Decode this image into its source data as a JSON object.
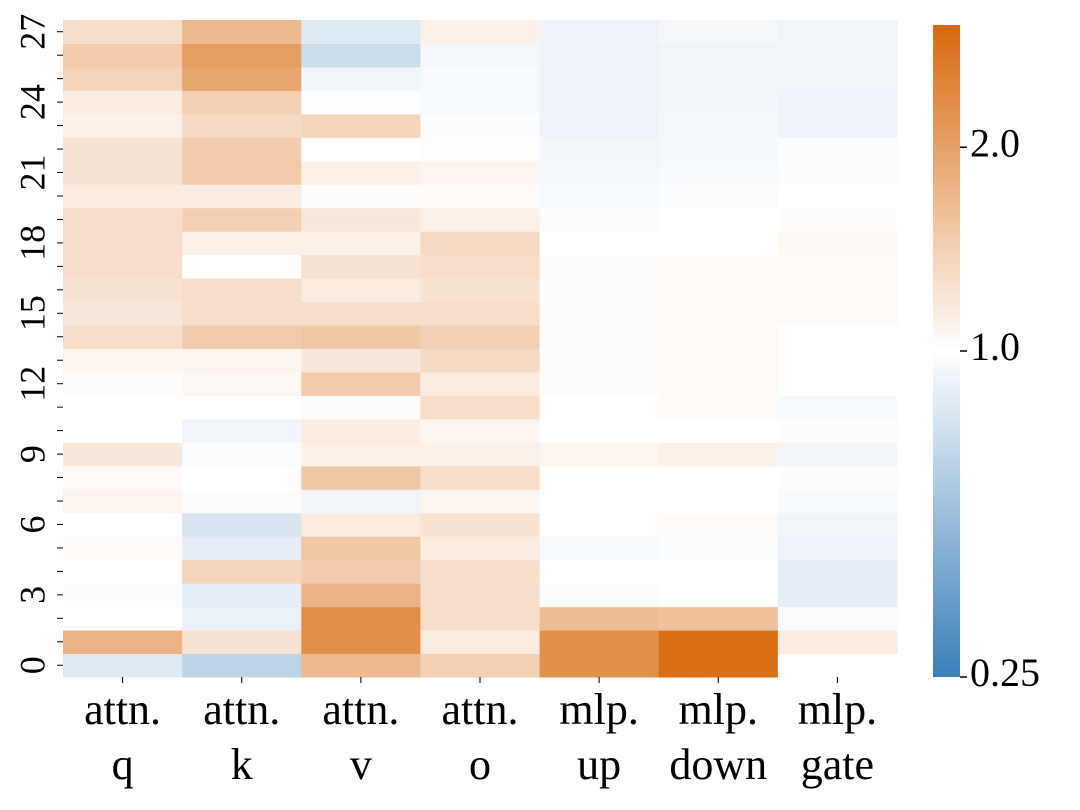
{
  "chart_data": {
    "type": "heatmap",
    "categories": [
      [
        "attn.",
        "q"
      ],
      [
        "attn.",
        "k"
      ],
      [
        "attn.",
        "v"
      ],
      [
        "attn.",
        "o"
      ],
      [
        "mlp.",
        "up"
      ],
      [
        "mlp.",
        "down"
      ],
      [
        "mlp.",
        "gate"
      ]
    ],
    "y_categories": [
      0,
      null,
      null,
      3,
      null,
      null,
      6,
      null,
      null,
      9,
      null,
      null,
      12,
      null,
      null,
      15,
      null,
      null,
      18,
      null,
      null,
      21,
      null,
      null,
      24,
      null,
      null,
      27
    ],
    "values": [
      [
        0.88,
        0.75,
        1.75,
        1.5,
        2.2,
        2.55,
        1.0
      ],
      [
        1.8,
        1.3,
        2.2,
        1.2,
        2.2,
        2.55,
        1.2
      ],
      [
        1.0,
        0.92,
        2.2,
        1.35,
        1.7,
        1.65,
        0.98
      ],
      [
        0.98,
        0.9,
        1.8,
        1.35,
        0.98,
        1.0,
        0.9
      ],
      [
        1.0,
        1.45,
        1.55,
        1.35,
        1.0,
        1.0,
        0.9
      ],
      [
        1.05,
        0.9,
        1.6,
        1.2,
        0.97,
        0.98,
        0.93
      ],
      [
        1.0,
        0.85,
        1.2,
        1.3,
        1.0,
        1.05,
        0.95
      ],
      [
        1.1,
        1.03,
        0.95,
        1.1,
        1.0,
        1.0,
        0.97
      ],
      [
        1.05,
        1.0,
        1.6,
        1.35,
        1.0,
        1.0,
        0.98
      ],
      [
        1.25,
        0.98,
        1.15,
        1.15,
        1.1,
        1.15,
        0.95
      ],
      [
        1.0,
        0.95,
        1.2,
        1.1,
        1.0,
        1.0,
        0.98
      ],
      [
        1.0,
        1.0,
        1.03,
        1.35,
        1.0,
        1.05,
        0.97
      ],
      [
        1.03,
        1.08,
        1.55,
        1.2,
        1.03,
        1.05,
        1.0
      ],
      [
        1.1,
        1.1,
        1.25,
        1.4,
        1.03,
        1.05,
        1.0
      ],
      [
        1.35,
        1.55,
        1.6,
        1.5,
        1.03,
        1.05,
        1.0
      ],
      [
        1.25,
        1.35,
        1.35,
        1.35,
        1.03,
        1.05,
        1.05
      ],
      [
        1.3,
        1.35,
        1.2,
        1.3,
        1.03,
        1.05,
        1.05
      ],
      [
        1.35,
        1.0,
        1.3,
        1.35,
        1.03,
        1.05,
        1.05
      ],
      [
        1.35,
        1.15,
        1.15,
        1.4,
        1.0,
        1.0,
        1.08
      ],
      [
        1.35,
        1.5,
        1.25,
        1.15,
        0.98,
        1.0,
        1.03
      ],
      [
        1.2,
        1.2,
        0.98,
        1.05,
        0.97,
        0.98,
        1.0
      ],
      [
        1.3,
        1.55,
        1.15,
        1.1,
        0.96,
        0.97,
        0.98
      ],
      [
        1.3,
        1.55,
        1.0,
        1.02,
        0.95,
        0.96,
        0.98
      ],
      [
        1.15,
        1.4,
        1.45,
        0.98,
        0.93,
        0.96,
        0.93
      ],
      [
        1.2,
        1.5,
        0.99,
        0.97,
        0.93,
        0.95,
        0.93
      ],
      [
        1.45,
        1.95,
        0.95,
        0.97,
        0.93,
        0.94,
        0.94
      ],
      [
        1.55,
        2.05,
        0.8,
        0.96,
        0.93,
        0.94,
        0.94
      ],
      [
        1.35,
        1.75,
        0.88,
        1.15,
        0.93,
        0.96,
        0.94
      ]
    ],
    "colorbar": {
      "lim": [
        0.25,
        2.6
      ],
      "center": 1.0,
      "colors": [
        "#3a7fb9",
        "#ffffff",
        "#d8690d"
      ],
      "ticks": [
        0.25,
        {
          "value": 1.0,
          "label": "1.0"
        },
        {
          "value": 2.0,
          "label": "2.0"
        }
      ]
    }
  }
}
